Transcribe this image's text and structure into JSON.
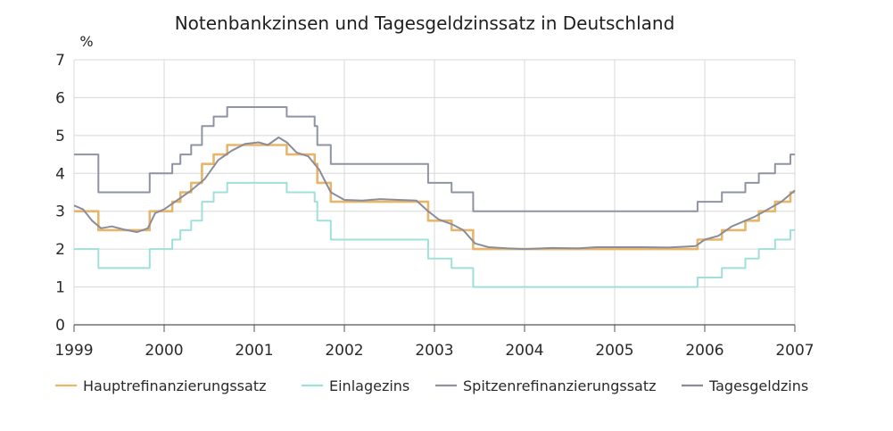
{
  "chart_data": {
    "type": "line",
    "title": "Notenbankzinsen und Tagesgeldzinssatz in Deutschland",
    "ylabel": "%",
    "xlabel": "",
    "xlim": [
      1999,
      2007
    ],
    "ylim": [
      0,
      7
    ],
    "x_ticks": [
      1999,
      2000,
      2001,
      2002,
      2003,
      2004,
      2005,
      2006,
      2007
    ],
    "y_ticks": [
      0,
      1,
      2,
      3,
      4,
      5,
      6,
      7
    ],
    "grid": true,
    "legend_position": "bottom",
    "series": [
      {
        "name": "Hauptrefinanzierungssatz",
        "color": "#e7b66a",
        "dash": "",
        "step": true,
        "points": [
          [
            1999.0,
            3.0
          ],
          [
            1999.27,
            2.5
          ],
          [
            1999.84,
            3.0
          ],
          [
            2000.09,
            3.25
          ],
          [
            2000.18,
            3.5
          ],
          [
            2000.3,
            3.75
          ],
          [
            2000.42,
            4.25
          ],
          [
            2000.55,
            4.5
          ],
          [
            2000.7,
            4.75
          ],
          [
            2001.36,
            4.5
          ],
          [
            2001.67,
            4.25
          ],
          [
            2001.7,
            3.75
          ],
          [
            2001.85,
            3.25
          ],
          [
            2002.93,
            2.75
          ],
          [
            2003.19,
            2.5
          ],
          [
            2003.43,
            2.0
          ],
          [
            2005.92,
            2.25
          ],
          [
            2006.19,
            2.5
          ],
          [
            2006.45,
            2.75
          ],
          [
            2006.6,
            3.0
          ],
          [
            2006.78,
            3.25
          ],
          [
            2006.95,
            3.5
          ],
          [
            2007.0,
            3.5
          ]
        ]
      },
      {
        "name": "Einlagezins",
        "color": "#9fe0da",
        "dash": "",
        "step": true,
        "points": [
          [
            1999.0,
            2.0
          ],
          [
            1999.27,
            1.5
          ],
          [
            1999.84,
            2.0
          ],
          [
            2000.09,
            2.25
          ],
          [
            2000.18,
            2.5
          ],
          [
            2000.3,
            2.75
          ],
          [
            2000.42,
            3.25
          ],
          [
            2000.55,
            3.5
          ],
          [
            2000.7,
            3.75
          ],
          [
            2001.36,
            3.5
          ],
          [
            2001.67,
            3.25
          ],
          [
            2001.7,
            2.75
          ],
          [
            2001.85,
            2.25
          ],
          [
            2002.93,
            1.75
          ],
          [
            2003.19,
            1.5
          ],
          [
            2003.43,
            1.0
          ],
          [
            2005.92,
            1.25
          ],
          [
            2006.19,
            1.5
          ],
          [
            2006.45,
            1.75
          ],
          [
            2006.6,
            2.0
          ],
          [
            2006.78,
            2.25
          ],
          [
            2006.95,
            2.5
          ],
          [
            2007.0,
            2.5
          ]
        ]
      },
      {
        "name": "Spitzenrefinanzierungssatz",
        "color": "#8f93a4",
        "dash": "",
        "step": true,
        "points": [
          [
            1999.0,
            4.5
          ],
          [
            1999.27,
            3.5
          ],
          [
            1999.84,
            4.0
          ],
          [
            2000.09,
            4.25
          ],
          [
            2000.18,
            4.5
          ],
          [
            2000.3,
            4.75
          ],
          [
            2000.42,
            5.25
          ],
          [
            2000.55,
            5.5
          ],
          [
            2000.7,
            5.75
          ],
          [
            2001.36,
            5.5
          ],
          [
            2001.67,
            5.25
          ],
          [
            2001.7,
            4.75
          ],
          [
            2001.85,
            4.25
          ],
          [
            2002.93,
            3.75
          ],
          [
            2003.19,
            3.5
          ],
          [
            2003.43,
            3.0
          ],
          [
            2005.92,
            3.25
          ],
          [
            2006.19,
            3.5
          ],
          [
            2006.45,
            3.75
          ],
          [
            2006.6,
            4.0
          ],
          [
            2006.78,
            4.25
          ],
          [
            2006.95,
            4.5
          ],
          [
            2007.0,
            4.5
          ]
        ]
      },
      {
        "name": "Tagesgeldzins",
        "color": "#8a8d9b",
        "dash": "",
        "step": false,
        "points": [
          [
            1999.0,
            3.15
          ],
          [
            1999.1,
            3.05
          ],
          [
            1999.2,
            2.75
          ],
          [
            1999.3,
            2.55
          ],
          [
            1999.42,
            2.6
          ],
          [
            1999.55,
            2.52
          ],
          [
            1999.7,
            2.45
          ],
          [
            1999.82,
            2.55
          ],
          [
            1999.9,
            2.95
          ],
          [
            2000.0,
            3.05
          ],
          [
            2000.15,
            3.3
          ],
          [
            2000.3,
            3.55
          ],
          [
            2000.45,
            3.85
          ],
          [
            2000.6,
            4.35
          ],
          [
            2000.75,
            4.6
          ],
          [
            2000.9,
            4.78
          ],
          [
            2001.05,
            4.82
          ],
          [
            2001.15,
            4.75
          ],
          [
            2001.27,
            4.95
          ],
          [
            2001.36,
            4.82
          ],
          [
            2001.47,
            4.55
          ],
          [
            2001.6,
            4.45
          ],
          [
            2001.72,
            4.1
          ],
          [
            2001.85,
            3.5
          ],
          [
            2002.0,
            3.3
          ],
          [
            2002.2,
            3.28
          ],
          [
            2002.4,
            3.32
          ],
          [
            2002.6,
            3.3
          ],
          [
            2002.8,
            3.28
          ],
          [
            2002.93,
            3.0
          ],
          [
            2003.05,
            2.78
          ],
          [
            2003.2,
            2.65
          ],
          [
            2003.32,
            2.5
          ],
          [
            2003.45,
            2.15
          ],
          [
            2003.6,
            2.05
          ],
          [
            2003.8,
            2.02
          ],
          [
            2004.0,
            2.0
          ],
          [
            2004.3,
            2.03
          ],
          [
            2004.6,
            2.02
          ],
          [
            2004.8,
            2.05
          ],
          [
            2005.0,
            2.05
          ],
          [
            2005.3,
            2.05
          ],
          [
            2005.6,
            2.04
          ],
          [
            2005.9,
            2.08
          ],
          [
            2006.0,
            2.25
          ],
          [
            2006.15,
            2.35
          ],
          [
            2006.3,
            2.6
          ],
          [
            2006.45,
            2.75
          ],
          [
            2006.55,
            2.85
          ],
          [
            2006.7,
            3.05
          ],
          [
            2006.85,
            3.25
          ],
          [
            2007.0,
            3.55
          ]
        ]
      }
    ]
  }
}
